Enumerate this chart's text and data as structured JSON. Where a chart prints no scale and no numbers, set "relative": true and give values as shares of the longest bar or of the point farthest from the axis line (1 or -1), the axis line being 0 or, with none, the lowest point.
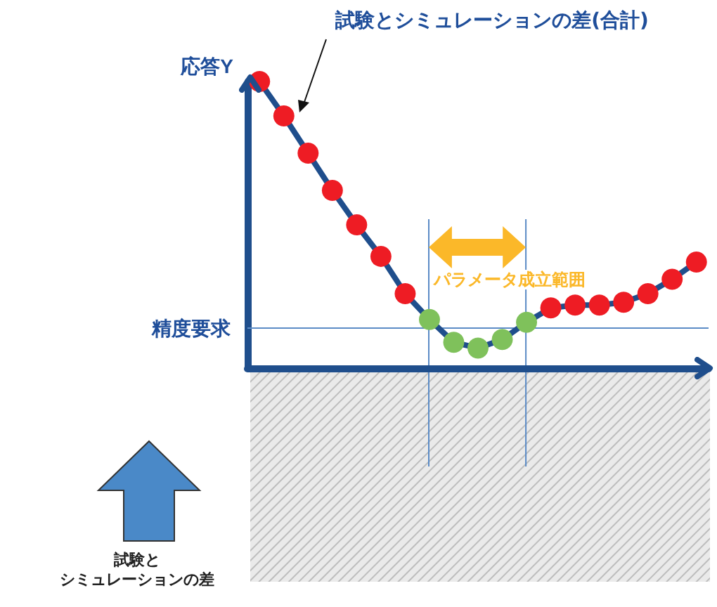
{
  "chart_data": {
    "type": "line",
    "relative": true,
    "ylabel": "応答Y",
    "categories": [
      null,
      null,
      null,
      null,
      null,
      null,
      null,
      null,
      null,
      null,
      null,
      null,
      null,
      null,
      null,
      null,
      null,
      null,
      null
    ],
    "series": [
      {
        "name": "試験とシミュレーションの差(合計)",
        "color": "#1f4e8c",
        "colors": [
          "#ee1c24",
          "#ee1c24",
          "#ee1c24",
          "#ee1c24",
          "#ee1c24",
          "#ee1c24",
          "#ee1c24",
          "#7fc15b",
          "#7fc15b",
          "#7fc15b",
          "#7fc15b",
          "#7fc15b",
          "#ee1c24",
          "#ee1c24",
          "#ee1c24",
          "#ee1c24",
          "#ee1c24",
          "#ee1c24",
          "#ee1c24"
        ],
        "values": [
          1,
          0.88,
          0.75,
          0.62,
          0.5,
          0.39,
          0.26,
          0.17,
          0.09,
          0.07,
          0.1,
          0.16,
          0.21,
          0.22,
          0.22,
          0.23,
          0.26,
          0.31,
          0.37
        ]
      }
    ],
    "ref_lines": [
      {
        "axis": "y",
        "value": 0.14,
        "label": "精度要求",
        "color": "#5b8bc6"
      }
    ],
    "annotations": [
      "パラメータ成立範囲",
      "試験とシミュレーションの差"
    ],
    "marker": "circle",
    "line_style": "solid",
    "grid": false,
    "legend": false
  }
}
